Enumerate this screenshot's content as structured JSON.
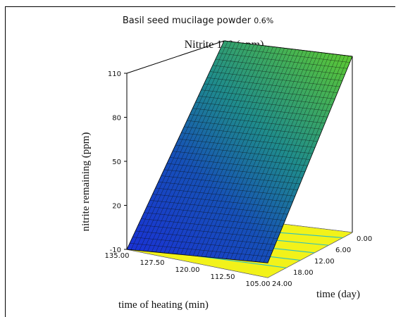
{
  "header": {
    "title": "Basil seed mucilage powder",
    "title_value": "0.6%",
    "subtitle": "Nitrite 180 (ppm)"
  },
  "chart_data": {
    "type": "surface",
    "zlabel": "nitrite remaining (ppm)",
    "xlabel": "time of heating (min)",
    "ylabel": "time (day)",
    "z_ticks": [
      "-10",
      "20",
      "50",
      "80",
      "110"
    ],
    "x_ticks": [
      "135.00",
      "127.50",
      "120.00",
      "112.50",
      "105.00"
    ],
    "y_ticks": [
      "0.00",
      "6.00",
      "12.00",
      "18.00",
      "24.00"
    ],
    "zlim": [
      -10,
      110
    ],
    "xlim": [
      105,
      135
    ],
    "ylim": [
      0,
      24
    ],
    "surface_corners": [
      {
        "time_of_heating": 135,
        "time_day": 0,
        "nitrite_remaining": 110
      },
      {
        "time_of_heating": 135,
        "time_day": 24,
        "nitrite_remaining": -10
      },
      {
        "time_of_heating": 105,
        "time_day": 0,
        "nitrite_remaining": 110
      },
      {
        "time_of_heating": 105,
        "time_day": 24,
        "nitrite_remaining": 0
      }
    ],
    "colors": {
      "surface_low": "#1020c0",
      "surface_high": "#5ad02a",
      "contour_floor": "#f2f21a",
      "contour_lines": "#2ac0c0",
      "grid": "#000000"
    }
  }
}
